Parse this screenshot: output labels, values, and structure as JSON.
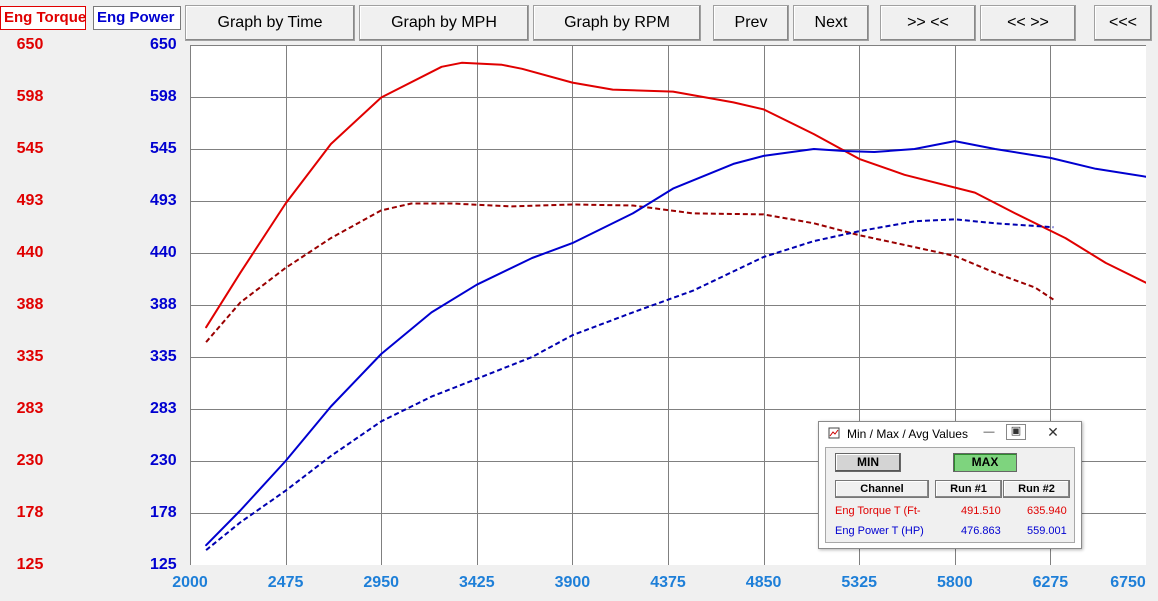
{
  "channel_tabs": {
    "torque": "Eng Torque",
    "power": "Eng Power"
  },
  "toolbar": {
    "graph_time": "Graph by Time",
    "graph_mph": "Graph by MPH",
    "graph_rpm": "Graph by RPM",
    "prev": "Prev",
    "next": "Next",
    "zoom_in": ">> <<",
    "zoom_out": "<< >>",
    "back": "<<<"
  },
  "colors": {
    "torque": "#e00000",
    "power": "#0000d0",
    "torque_run1": "#9a0000",
    "power_run1": "#0000b0",
    "xaxis": "#1e7fd8",
    "grid": "#808080",
    "max_button": "#7ed47e"
  },
  "minmax": {
    "title": "Min / Max / Avg Values",
    "min_label": "MIN",
    "max_label": "MAX",
    "headers": {
      "channel": "Channel",
      "run1": "Run #1",
      "run2": "Run #2"
    },
    "rows": [
      {
        "channel": "Eng Torque T (Ft-",
        "run1": "491.510",
        "run2": "635.940"
      },
      {
        "channel": "Eng Power T (HP)",
        "run1": "476.863",
        "run2": "559.001"
      }
    ]
  },
  "chart_data": {
    "type": "line",
    "x_ticks": [
      "2000",
      "2475",
      "2950",
      "3425",
      "3900",
      "4375",
      "4850",
      "5325",
      "5800",
      "6275",
      "6750"
    ],
    "y_ticks_torque": [
      "650",
      "598",
      "545",
      "493",
      "440",
      "388",
      "335",
      "283",
      "230",
      "178",
      "125"
    ],
    "y_ticks_power": [
      "650",
      "598",
      "545",
      "493",
      "440",
      "388",
      "335",
      "283",
      "230",
      "178",
      "125"
    ],
    "xlim": [
      2000,
      6750
    ],
    "ylim": [
      125,
      650
    ],
    "grid": true,
    "series": [
      {
        "name": "Eng Torque",
        "run": "Run #2",
        "color_key": "torque",
        "dashed": false,
        "x": [
          2080,
          2250,
          2475,
          2700,
          2950,
          3250,
          3350,
          3550,
          3650,
          3900,
          4100,
          4400,
          4700,
          4850,
          5100,
          5325,
          5550,
          5900,
          6100,
          6350,
          6550,
          6750
        ],
        "y": [
          365,
          420,
          490,
          550,
          597,
          628,
          632,
          630,
          626,
          612,
          605,
          603,
          592,
          585,
          560,
          535,
          519,
          501,
          480,
          455,
          430,
          410
        ]
      },
      {
        "name": "Eng Torque",
        "run": "Run #1",
        "color_key": "torque_run1",
        "dashed": true,
        "x": [
          2080,
          2250,
          2475,
          2700,
          2950,
          3100,
          3300,
          3600,
          3900,
          4200,
          4500,
          4850,
          5100,
          5325,
          5600,
          5800,
          6000,
          6200,
          6290
        ],
        "y": [
          350,
          390,
          425,
          455,
          483,
          490,
          490,
          487,
          489,
          488,
          480,
          479,
          470,
          458,
          446,
          437,
          420,
          405,
          393
        ]
      },
      {
        "name": "Eng Power",
        "run": "Run #2",
        "color_key": "power",
        "dashed": false,
        "x": [
          2080,
          2250,
          2475,
          2700,
          2950,
          3200,
          3425,
          3700,
          3900,
          4200,
          4400,
          4700,
          4850,
          5100,
          5250,
          5400,
          5600,
          5800,
          6000,
          6275,
          6500,
          6750
        ],
        "y": [
          145,
          180,
          230,
          285,
          338,
          380,
          408,
          435,
          450,
          480,
          505,
          530,
          538,
          545,
          543,
          542,
          545,
          553,
          545,
          536,
          525,
          517
        ]
      },
      {
        "name": "Eng Power",
        "run": "Run #1",
        "color_key": "power_run1",
        "dashed": true,
        "x": [
          2080,
          2250,
          2475,
          2700,
          2950,
          3200,
          3425,
          3700,
          3900,
          4200,
          4500,
          4850,
          5100,
          5325,
          5600,
          5800,
          6000,
          6290
        ],
        "y": [
          140,
          168,
          200,
          235,
          270,
          295,
          313,
          335,
          357,
          380,
          402,
          436,
          452,
          462,
          472,
          474,
          470,
          466
        ]
      }
    ]
  }
}
